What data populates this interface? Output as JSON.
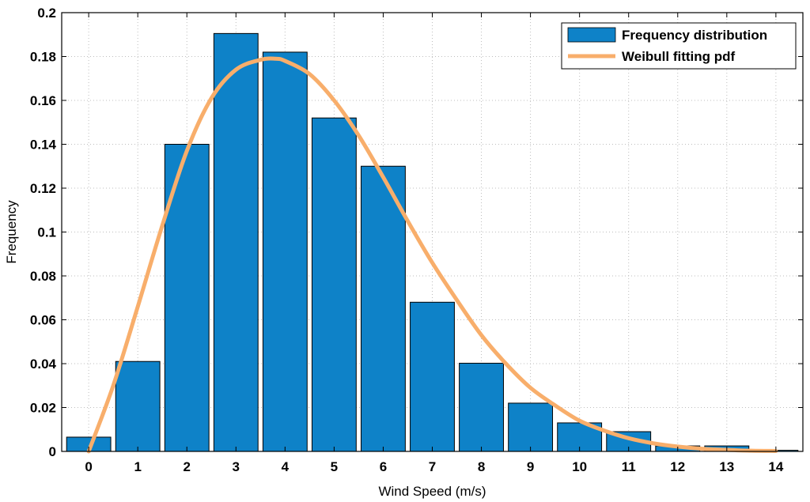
{
  "chart_data": {
    "type": "bar",
    "xlabel": "Wind Speed (m/s)",
    "ylabel": "Frequency",
    "xlim": [
      -0.55,
      14.55
    ],
    "ylim": [
      0,
      0.2
    ],
    "x_ticks": [
      0,
      1,
      2,
      3,
      4,
      5,
      6,
      7,
      8,
      9,
      10,
      11,
      12,
      13,
      14
    ],
    "x_tick_labels": [
      "0",
      "1",
      "2",
      "3",
      "4",
      "5",
      "6",
      "7",
      "8",
      "9",
      "10",
      "11",
      "12",
      "13",
      "14"
    ],
    "y_ticks": [
      0,
      0.02,
      0.04,
      0.06,
      0.08,
      0.1,
      0.12,
      0.14,
      0.16,
      0.18,
      0.2
    ],
    "y_tick_labels": [
      "0",
      "0.02",
      "0.04",
      "0.06",
      "0.08",
      "0.1",
      "0.12",
      "0.14",
      "0.16",
      "0.18",
      "0.2"
    ],
    "grid": true,
    "legend_position": "top-right",
    "series": [
      {
        "name": "Frequency distribution",
        "kind": "bar",
        "color": "#0e82c8",
        "x": [
          0,
          1,
          2,
          3,
          4,
          5,
          6,
          7,
          8,
          9,
          10,
          11,
          12,
          13,
          14
        ],
        "values": [
          0.0065,
          0.041,
          0.14,
          0.1905,
          0.182,
          0.152,
          0.13,
          0.068,
          0.0402,
          0.022,
          0.013,
          0.009,
          0.0025,
          0.0025,
          0.0005
        ]
      },
      {
        "name": "Weibull fitting pdf",
        "kind": "line",
        "color": "#f8ae6b",
        "x": [
          0,
          0.5,
          1,
          1.5,
          2,
          2.5,
          3,
          3.5,
          3.8,
          4,
          4.5,
          5,
          5.5,
          6,
          6.5,
          7,
          7.5,
          8,
          8.5,
          9,
          9.5,
          10,
          10.5,
          11,
          11.5,
          12,
          12.5,
          13,
          13.5,
          14
        ],
        "values": [
          0,
          0.03,
          0.066,
          0.103,
          0.137,
          0.161,
          0.174,
          0.1785,
          0.179,
          0.178,
          0.172,
          0.16,
          0.144,
          0.125,
          0.105,
          0.086,
          0.069,
          0.053,
          0.04,
          0.029,
          0.021,
          0.014,
          0.0095,
          0.006,
          0.0037,
          0.0022,
          0.0012,
          0.0007,
          0.0003,
          0.0002
        ]
      }
    ]
  }
}
